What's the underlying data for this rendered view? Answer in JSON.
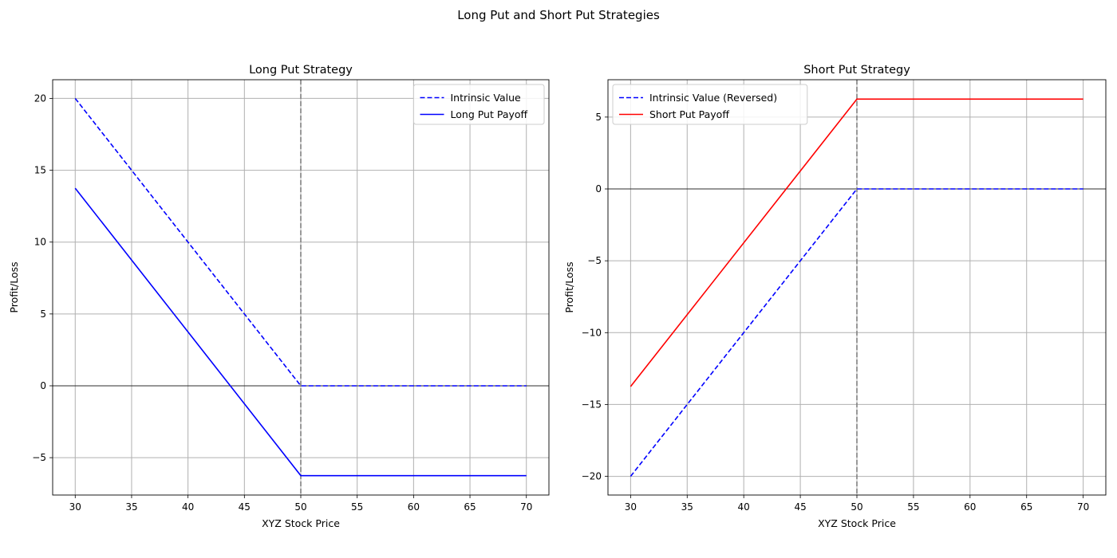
{
  "suptitle": "Long Put and Short Put Strategies",
  "chart_data": [
    {
      "type": "line",
      "title": "Long Put Strategy",
      "xlabel": "XYZ Stock Price",
      "ylabel": "Profit/Loss",
      "xlim": [
        28,
        72
      ],
      "ylim": [
        -7.6,
        21.3
      ],
      "xticks": [
        30,
        35,
        40,
        45,
        50,
        55,
        60,
        65,
        70
      ],
      "yticks": [
        -5,
        0,
        5,
        10,
        15,
        20
      ],
      "ytick_labels": [
        "−5",
        "0",
        "5",
        "10",
        "15",
        "20"
      ],
      "grid": true,
      "hline": 0,
      "vline": 50,
      "legend_position": "upper-right",
      "series": [
        {
          "name": "Intrinsic Value",
          "color": "#0000ff",
          "style": "dashed",
          "x": [
            30,
            50,
            70
          ],
          "y": [
            20,
            0,
            0
          ]
        },
        {
          "name": "Long Put Payoff",
          "color": "#0000ff",
          "style": "solid",
          "x": [
            30,
            50,
            70
          ],
          "y": [
            13.75,
            -6.25,
            -6.25
          ]
        }
      ]
    },
    {
      "type": "line",
      "title": "Short Put Strategy",
      "xlabel": "XYZ Stock Price",
      "ylabel": "Profit/Loss",
      "xlim": [
        28,
        72
      ],
      "ylim": [
        -21.3,
        7.6
      ],
      "xticks": [
        30,
        35,
        40,
        45,
        50,
        55,
        60,
        65,
        70
      ],
      "yticks": [
        -20,
        -15,
        -10,
        -5,
        0,
        5
      ],
      "ytick_labels": [
        "−20",
        "−15",
        "−10",
        "−5",
        "0",
        "5"
      ],
      "grid": true,
      "hline": 0,
      "vline": 50,
      "legend_position": "upper-left",
      "series": [
        {
          "name": "Intrinsic Value (Reversed)",
          "color": "#0000ff",
          "style": "dashed",
          "x": [
            30,
            50,
            70
          ],
          "y": [
            -20,
            0,
            0
          ]
        },
        {
          "name": "Short Put Payoff",
          "color": "#ff0000",
          "style": "solid",
          "x": [
            30,
            50,
            70
          ],
          "y": [
            -13.75,
            6.25,
            6.25
          ]
        }
      ]
    }
  ]
}
